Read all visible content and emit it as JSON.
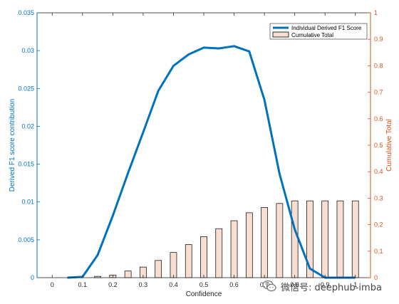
{
  "chart_data": {
    "type": "bar+line",
    "xlabel": "Confidence",
    "ylabel_left": "Derived F1 score contribution",
    "ylabel_right": "Cumulative Total",
    "xlim": [
      -0.05,
      1.05
    ],
    "ylim_left": [
      0,
      0.035
    ],
    "ylim_right": [
      0,
      1
    ],
    "x_ticks": [
      "0",
      "0.1",
      "0.2",
      "0.3",
      "0.4",
      "0.5",
      "0.6",
      "0.7",
      "0.8",
      "0.9",
      "1"
    ],
    "y_left_ticks": [
      "0",
      "0.005",
      "0.01",
      "0.015",
      "0.02",
      "0.025",
      "0.03",
      "0.035"
    ],
    "y_right_ticks": [
      "0",
      "0.1",
      "0.2",
      "0.3",
      "0.4",
      "0.5",
      "0.6",
      "0.7",
      "0.8",
      "0.9",
      "1"
    ],
    "grid": false,
    "legend_position": "top-right",
    "colors": {
      "line": "#0072BD",
      "bar_fill": "#F8DDD1",
      "bar_edge": "#000000",
      "left_axis": "#0072BD",
      "right_axis": "#D95319"
    },
    "series": [
      {
        "name": "Individual Derived F1 Score",
        "type": "line",
        "axis": "left",
        "x": [
          0.05,
          0.1,
          0.15,
          0.2,
          0.25,
          0.3,
          0.35,
          0.4,
          0.45,
          0.5,
          0.55,
          0.6,
          0.65,
          0.7,
          0.75,
          0.8,
          0.85,
          0.9,
          0.95,
          1.0
        ],
        "values": [
          0,
          0.0001,
          0.003,
          0.0082,
          0.0138,
          0.0192,
          0.0247,
          0.028,
          0.0295,
          0.0304,
          0.0303,
          0.0306,
          0.0299,
          0.0235,
          0.0137,
          0.0064,
          0.0012,
          0,
          0,
          0
        ]
      },
      {
        "name": "Cumulative Total",
        "type": "bar",
        "axis": "right",
        "x": [
          0.15,
          0.2,
          0.25,
          0.3,
          0.35,
          0.4,
          0.45,
          0.5,
          0.55,
          0.6,
          0.65,
          0.7,
          0.75,
          0.8,
          0.85,
          0.9,
          0.95,
          1.0
        ],
        "values": [
          0.005,
          0.01,
          0.025,
          0.04,
          0.065,
          0.095,
          0.125,
          0.155,
          0.185,
          0.215,
          0.245,
          0.265,
          0.28,
          0.29,
          0.29,
          0.29,
          0.29,
          0.29
        ]
      }
    ]
  },
  "watermark": {
    "text": "微信号: deephub-imba",
    "icon": "wechat-icon"
  }
}
